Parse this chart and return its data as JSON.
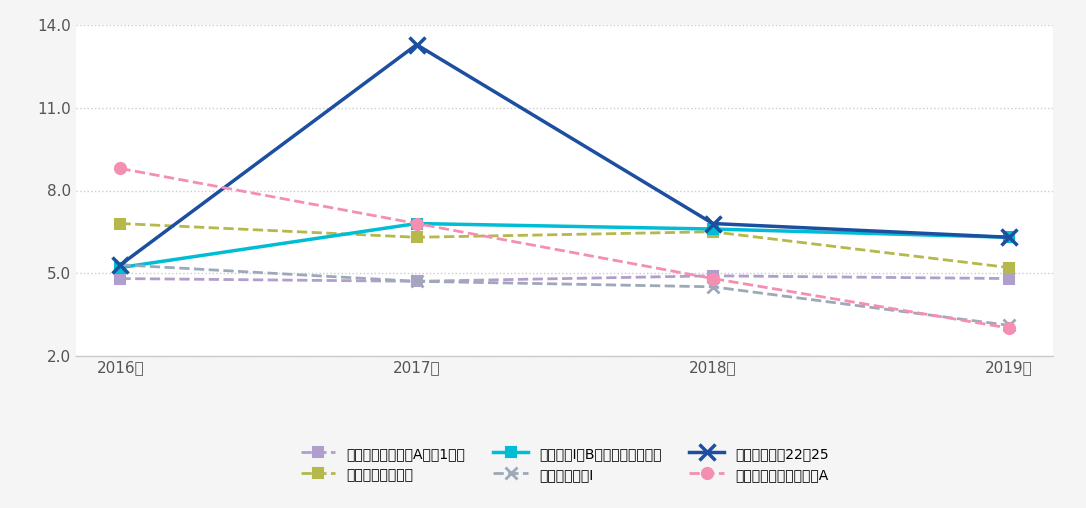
{
  "years": [
    2016,
    2017,
    2018,
    2019
  ],
  "year_labels": [
    "2016年",
    "2017年",
    "2018年",
    "2019年"
  ],
  "series": [
    {
      "name": "北海道　一般行政A（第1回）",
      "values": [
        4.8,
        4.7,
        4.9,
        4.8
      ],
      "color": "#b09fcc",
      "linestyle": "dashed",
      "marker": "s",
      "linewidth": 2.0,
      "markersize": 7,
      "markeredgewidth": 1.5
    },
    {
      "name": "埼玉県　一般行政",
      "values": [
        6.8,
        6.3,
        6.5,
        5.2
      ],
      "color": "#b5b84a",
      "linestyle": "dashed",
      "marker": "s",
      "linewidth": 2.0,
      "markersize": 7,
      "markeredgewidth": 1.5
    },
    {
      "name": "東京都　Ⅰ類B（行政一般方式）",
      "values": [
        5.2,
        6.8,
        6.6,
        6.3
      ],
      "color": "#00bcd4",
      "linestyle": "solid",
      "marker": "s",
      "linewidth": 2.5,
      "markersize": 7,
      "markeredgewidth": 1.5
    },
    {
      "name": "愛知県　行政Ⅰ",
      "values": [
        5.3,
        4.7,
        4.5,
        3.1
      ],
      "color": "#9da8b8",
      "linestyle": "dashed",
      "marker": "x",
      "linewidth": 2.0,
      "markersize": 9,
      "markeredgewidth": 2.0
    },
    {
      "name": "大阪府　行政22－25",
      "values": [
        5.3,
        13.3,
        6.8,
        6.3
      ],
      "color": "#1c4fa0",
      "linestyle": "solid",
      "marker": "x",
      "linewidth": 2.5,
      "markersize": 11,
      "markeredgewidth": 2.5
    },
    {
      "name": "広島県　行政一般事務A",
      "values": [
        8.8,
        6.8,
        4.8,
        3.0
      ],
      "color": "#f48fb1",
      "linestyle": "dashed",
      "marker": "o",
      "linewidth": 2.0,
      "markersize": 8,
      "markeredgewidth": 1.5
    }
  ],
  "ylim": [
    2.0,
    14.0
  ],
  "yticks": [
    2.0,
    5.0,
    8.0,
    11.0,
    14.0
  ],
  "ytick_labels": [
    "2.0",
    "5.0",
    "8.0",
    "11.0",
    "14.0"
  ],
  "background_color": "#f5f5f5",
  "plot_bg_color": "#ffffff",
  "grid_color": "#cccccc",
  "legend_ncol": 3,
  "figsize": [
    10.86,
    5.08
  ],
  "dpi": 100
}
